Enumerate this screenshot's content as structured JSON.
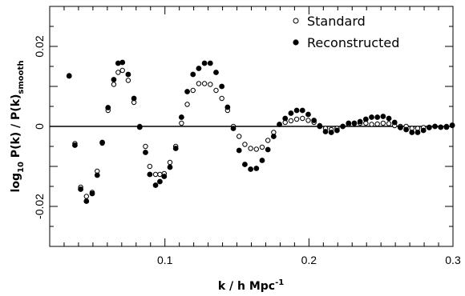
{
  "chart_data": {
    "type": "scatter",
    "title": "",
    "xlabel": {
      "main": "k / h Mpc",
      "sup": "-1"
    },
    "ylabel": {
      "prefix": "log",
      "sub1": "10",
      "middle": " P(k) / P(k)",
      "sub2": "smooth"
    },
    "xlim": [
      0.02,
      0.3
    ],
    "ylim": [
      -0.03,
      0.03
    ],
    "x_ticks": [
      0.1,
      0.2,
      0.3
    ],
    "x_tick_labels": [
      "0.1",
      "0.2",
      "0.3"
    ],
    "y_ticks": [
      -0.02,
      0,
      0.02
    ],
    "y_tick_labels": [
      "-0.02",
      "0",
      "0.02"
    ],
    "reference_line_y": 0,
    "legend_position": "top-right",
    "grid": false,
    "series": [
      {
        "name": "Standard",
        "marker": "open-circle",
        "points": [
          [
            0.0335,
            0.0127
          ],
          [
            0.0375,
            -0.0043
          ],
          [
            0.0415,
            -0.0152
          ],
          [
            0.0455,
            -0.0175
          ],
          [
            0.0495,
            -0.0165
          ],
          [
            0.053,
            -0.0112
          ],
          [
            0.0565,
            -0.0042
          ],
          [
            0.0605,
            0.004
          ],
          [
            0.0645,
            0.0105
          ],
          [
            0.0675,
            0.0135
          ],
          [
            0.0705,
            0.014
          ],
          [
            0.0745,
            0.0115
          ],
          [
            0.0785,
            0.006
          ],
          [
            0.0825,
            0.0
          ],
          [
            0.0865,
            -0.005
          ],
          [
            0.0895,
            -0.01
          ],
          [
            0.0935,
            -0.012
          ],
          [
            0.0965,
            -0.012
          ],
          [
            0.0995,
            -0.0118
          ],
          [
            0.1035,
            -0.009
          ],
          [
            0.1075,
            -0.005
          ],
          [
            0.1115,
            0.0008
          ],
          [
            0.1155,
            0.0055
          ],
          [
            0.1195,
            0.009
          ],
          [
            0.1235,
            0.0107
          ],
          [
            0.1275,
            0.0107
          ],
          [
            0.1315,
            0.0105
          ],
          [
            0.1355,
            0.009
          ],
          [
            0.1395,
            0.007
          ],
          [
            0.1435,
            0.004
          ],
          [
            0.1475,
            0.0
          ],
          [
            0.1515,
            -0.0025
          ],
          [
            0.1555,
            -0.0045
          ],
          [
            0.1595,
            -0.0055
          ],
          [
            0.1635,
            -0.0057
          ],
          [
            0.1675,
            -0.0052
          ],
          [
            0.1715,
            -0.0035
          ],
          [
            0.1755,
            -0.0015
          ],
          [
            0.1795,
            0.0005
          ],
          [
            0.1835,
            0.001
          ],
          [
            0.1875,
            0.0014
          ],
          [
            0.1915,
            0.0018
          ],
          [
            0.1955,
            0.002
          ],
          [
            0.1995,
            0.0015
          ],
          [
            0.2035,
            0.001
          ],
          [
            0.2075,
            0.0002
          ],
          [
            0.2115,
            -0.0005
          ],
          [
            0.2155,
            -0.0008
          ],
          [
            0.2195,
            -0.0005
          ],
          [
            0.2235,
            0.0
          ],
          [
            0.2275,
            0.0005
          ],
          [
            0.2315,
            0.0007
          ],
          [
            0.2355,
            0.0008
          ],
          [
            0.2395,
            0.0008
          ],
          [
            0.2435,
            0.0005
          ],
          [
            0.2475,
            0.0006
          ],
          [
            0.2515,
            0.0008
          ],
          [
            0.2555,
            0.0007
          ],
          [
            0.2595,
            0.0002
          ],
          [
            0.2635,
            0.0
          ],
          [
            0.2675,
            0.0
          ],
          [
            0.2715,
            -0.0005
          ],
          [
            0.2755,
            -0.0005
          ],
          [
            0.2795,
            -0.0003
          ],
          [
            0.2835,
            -0.0002
          ],
          [
            0.2875,
            0.0
          ],
          [
            0.2915,
            -0.0002
          ],
          [
            0.2955,
            0.0
          ],
          [
            0.2995,
            0.0002
          ]
        ]
      },
      {
        "name": "Reconstructed",
        "marker": "filled-circle",
        "points": [
          [
            0.0335,
            0.0126
          ],
          [
            0.0375,
            -0.0047
          ],
          [
            0.0415,
            -0.0157
          ],
          [
            0.0455,
            -0.0187
          ],
          [
            0.0495,
            -0.0168
          ],
          [
            0.053,
            -0.0122
          ],
          [
            0.0565,
            -0.004
          ],
          [
            0.0605,
            0.0047
          ],
          [
            0.0645,
            0.0117
          ],
          [
            0.0675,
            0.0158
          ],
          [
            0.0705,
            0.016
          ],
          [
            0.0745,
            0.013
          ],
          [
            0.0785,
            0.007
          ],
          [
            0.0825,
            -0.0002
          ],
          [
            0.0865,
            -0.0065
          ],
          [
            0.0895,
            -0.012
          ],
          [
            0.0935,
            -0.0147
          ],
          [
            0.0965,
            -0.0138
          ],
          [
            0.0995,
            -0.0125
          ],
          [
            0.1035,
            -0.0102
          ],
          [
            0.1075,
            -0.0055
          ],
          [
            0.1115,
            0.0023
          ],
          [
            0.1155,
            0.0087
          ],
          [
            0.1195,
            0.013
          ],
          [
            0.1235,
            0.0145
          ],
          [
            0.1275,
            0.0158
          ],
          [
            0.1315,
            0.0158
          ],
          [
            0.1355,
            0.0135
          ],
          [
            0.1395,
            0.01
          ],
          [
            0.1435,
            0.0048
          ],
          [
            0.1475,
            -0.0005
          ],
          [
            0.1515,
            -0.006
          ],
          [
            0.1555,
            -0.0095
          ],
          [
            0.1595,
            -0.0107
          ],
          [
            0.1635,
            -0.0105
          ],
          [
            0.1675,
            -0.0085
          ],
          [
            0.1715,
            -0.0058
          ],
          [
            0.1755,
            -0.0025
          ],
          [
            0.1795,
            0.0005
          ],
          [
            0.1835,
            0.002
          ],
          [
            0.1875,
            0.0033
          ],
          [
            0.1915,
            0.004
          ],
          [
            0.1955,
            0.004
          ],
          [
            0.1995,
            0.003
          ],
          [
            0.2035,
            0.0015
          ],
          [
            0.2075,
            0.0
          ],
          [
            0.2115,
            -0.0013
          ],
          [
            0.2155,
            -0.0015
          ],
          [
            0.2195,
            -0.001
          ],
          [
            0.2235,
            0.0
          ],
          [
            0.2275,
            0.0008
          ],
          [
            0.2315,
            0.0008
          ],
          [
            0.2355,
            0.0012
          ],
          [
            0.2395,
            0.0018
          ],
          [
            0.2435,
            0.0023
          ],
          [
            0.2475,
            0.0023
          ],
          [
            0.2515,
            0.0025
          ],
          [
            0.2555,
            0.002
          ],
          [
            0.2595,
            0.001
          ],
          [
            0.2635,
            -0.0003
          ],
          [
            0.2675,
            -0.0008
          ],
          [
            0.2715,
            -0.0015
          ],
          [
            0.2755,
            -0.0015
          ],
          [
            0.2795,
            -0.001
          ],
          [
            0.2835,
            -0.0003
          ],
          [
            0.2875,
            0.0
          ],
          [
            0.2915,
            -0.0002
          ],
          [
            0.2955,
            -0.0002
          ],
          [
            0.2995,
            0.0003
          ]
        ]
      }
    ]
  }
}
